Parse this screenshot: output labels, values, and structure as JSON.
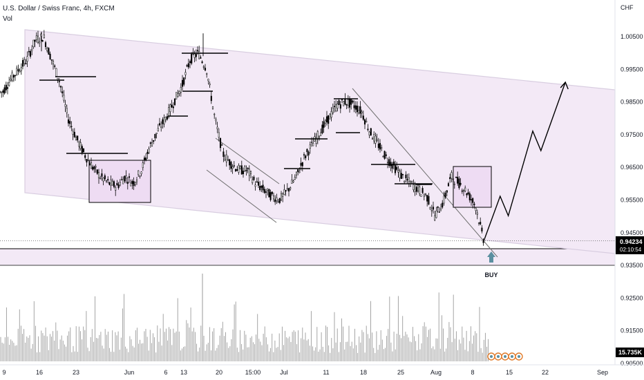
{
  "header": {
    "title": "U.S. Dollar / Swiss Franc, 4h, FXCM",
    "volume_label": "Vol"
  },
  "colors": {
    "candle": "#000000",
    "volume": "#9a9a9a",
    "channel_fill": "#f3e9f6",
    "channel_line": "#d8cde0",
    "support_zone": "#f3e9f6",
    "arrow": "#5b8fa0",
    "price_tag": "#000000"
  },
  "annotation": {
    "buy_label": "BUY"
  },
  "price_tag": {
    "price": "0.94234",
    "countdown": "02:10:54"
  },
  "volume_tag": {
    "value": "15.735K"
  },
  "chart_data": {
    "type": "candlestick",
    "currency_label": "CHF",
    "price_ticks": [
      "1.00500",
      "0.99500",
      "0.98500",
      "0.97500",
      "0.96500",
      "0.95500",
      "0.94500",
      "0.93500",
      "0.92500",
      "0.91500",
      "0.90500"
    ],
    "x_ticks": [
      "9",
      "16",
      "23",
      "Jun",
      "6",
      "13",
      "20",
      "15:00",
      "Jul",
      "11",
      "18",
      "25",
      "Aug",
      "8",
      "15",
      "22",
      "Sep"
    ],
    "current_price": 0.94234,
    "price_path": [
      [
        0,
        0.988
      ],
      [
        1,
        0.992
      ],
      [
        2,
        0.995
      ],
      [
        3,
        0.998
      ],
      [
        4,
        1.004
      ],
      [
        5,
        1.005
      ],
      [
        6,
        0.998
      ],
      [
        7,
        0.991
      ],
      [
        8,
        0.98
      ],
      [
        9,
        0.974
      ],
      [
        10,
        0.969
      ],
      [
        11,
        0.965
      ],
      [
        12,
        0.962
      ],
      [
        13,
        0.96
      ],
      [
        14,
        0.959
      ],
      [
        15,
        0.962
      ],
      [
        16,
        0.96
      ],
      [
        17,
        0.964
      ],
      [
        18,
        0.971
      ],
      [
        19,
        0.976
      ],
      [
        20,
        0.98
      ],
      [
        21,
        0.985
      ],
      [
        22,
        0.99
      ],
      [
        23,
        0.998
      ],
      [
        24,
        1.0
      ],
      [
        25,
        0.995
      ],
      [
        26,
        0.98
      ],
      [
        27,
        0.969
      ],
      [
        28,
        0.966
      ],
      [
        29,
        0.964
      ],
      [
        30,
        0.964
      ],
      [
        31,
        0.96
      ],
      [
        32,
        0.958
      ],
      [
        33,
        0.956
      ],
      [
        34,
        0.955
      ],
      [
        35,
        0.958
      ],
      [
        36,
        0.962
      ],
      [
        37,
        0.968
      ],
      [
        38,
        0.972
      ],
      [
        39,
        0.976
      ],
      [
        40,
        0.98
      ],
      [
        41,
        0.984
      ],
      [
        42,
        0.985
      ],
      [
        43,
        0.984
      ],
      [
        44,
        0.982
      ],
      [
        45,
        0.976
      ],
      [
        46,
        0.972
      ],
      [
        47,
        0.968
      ],
      [
        48,
        0.965
      ],
      [
        49,
        0.962
      ],
      [
        50,
        0.96
      ],
      [
        51,
        0.958
      ],
      [
        52,
        0.956
      ],
      [
        53,
        0.95
      ],
      [
        54,
        0.954
      ],
      [
        55,
        0.962
      ],
      [
        56,
        0.96
      ],
      [
        57,
        0.957
      ],
      [
        58,
        0.953
      ],
      [
        59,
        0.9423
      ]
    ],
    "projection_path": [
      [
        59,
        0.9423
      ],
      [
        61,
        0.956
      ],
      [
        62,
        0.95
      ],
      [
        65,
        0.976
      ],
      [
        66,
        0.97
      ],
      [
        69,
        0.991
      ]
    ]
  }
}
